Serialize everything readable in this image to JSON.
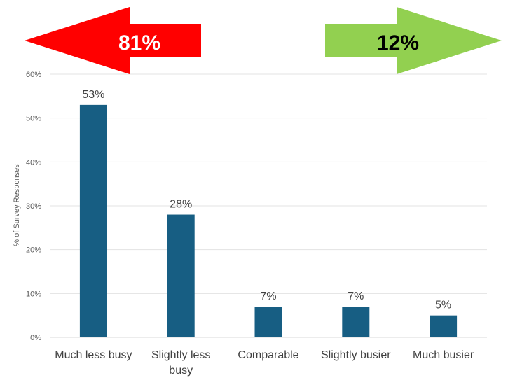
{
  "chart_data": {
    "type": "bar",
    "categories": [
      "Much less busy",
      "Slightly less busy",
      "Comparable",
      "Slightly busier",
      "Much busier"
    ],
    "category_lines": [
      [
        "Much less busy"
      ],
      [
        "Slightly less",
        "busy"
      ],
      [
        "Comparable"
      ],
      [
        "Slightly busier"
      ],
      [
        "Much busier"
      ]
    ],
    "values": [
      53,
      28,
      7,
      7,
      5
    ],
    "data_labels": [
      "53%",
      "28%",
      "7%",
      "7%",
      "5%"
    ],
    "ylabel": "% of Survey Responses",
    "ylim": [
      0,
      60
    ],
    "yticks": [
      0,
      10,
      20,
      30,
      40,
      50,
      60
    ],
    "ytick_labels": [
      "0%",
      "10%",
      "20%",
      "30%",
      "40%",
      "50%",
      "60%"
    ],
    "bar_color": "#175E83",
    "grid": true,
    "annotations": [
      {
        "text": "81%",
        "direction": "left",
        "color": "#FF0000",
        "text_color": "#FFFFFF"
      },
      {
        "text": "12%",
        "direction": "right",
        "color": "#92D050",
        "text_color": "#000000"
      }
    ]
  }
}
